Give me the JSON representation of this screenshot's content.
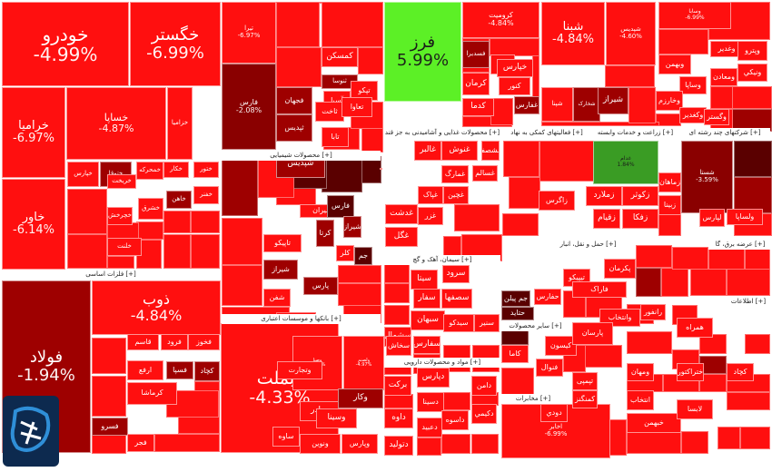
{
  "chart_data": {
    "type": "treemap",
    "title": "",
    "unit": "%",
    "sectors": [
      {
        "name": "فلزات اساسی [+]"
      },
      {
        "name": "بانکها و موسسات اعتباری [+]"
      },
      {
        "name": "محصولات شیمیایی [+]"
      },
      {
        "name": "محصولات غذایی و آشامیدنی به جز قند [+]"
      },
      {
        "name": "فعالیتهای کمکی به نهاد [+]"
      },
      {
        "name": "زراعت و خدمات وابسته [+]"
      },
      {
        "name": "شرکتهای چند رشته ای [+]"
      },
      {
        "name": "سیمان، آهک و گچ [+]"
      },
      {
        "name": "مواد و محصولات دارویی [+]"
      },
      {
        "name": "سایر محصولات [+]"
      },
      {
        "name": "مخابرات [+]"
      },
      {
        "name": "حمل و نقل، انبار [+]"
      },
      {
        "name": "عرضه برق، گا [+]"
      },
      {
        "name": "اطلاعات [+]"
      }
    ],
    "stocks": [
      {
        "name": "خودرو",
        "change": -4.99
      },
      {
        "name": "خگستر",
        "change": -6.99
      },
      {
        "name": "خراميا",
        "change": -6.97
      },
      {
        "name": "خساپا",
        "change": -4.87
      },
      {
        "name": "خاور",
        "change": -6.14
      },
      {
        "name": "فولاد",
        "change": -1.94
      },
      {
        "name": "ذوب",
        "change": -4.84
      },
      {
        "name": "وبملت",
        "change": -4.33
      },
      {
        "name": "فارس",
        "change": -2.08
      },
      {
        "name": "فرز",
        "change": 5.99
      },
      {
        "name": "کروميت",
        "change": -4.84
      },
      {
        "name": "شبنا",
        "change": -4.84
      },
      {
        "name": "شپديس",
        "change": -4.6
      },
      {
        "name": "وسابا",
        "change": -6.99
      },
      {
        "name": "تيرا",
        "change": -6.97
      },
      {
        "name": "غدام",
        "change": 1.84
      },
      {
        "name": "شستا",
        "change": -3.59
      },
      {
        "name": "اخابر",
        "change": -6.99
      },
      {
        "name": "وصنا",
        "change": -4.99
      },
      {
        "name": "ولصنم",
        "change": -4.97
      }
    ],
    "labels": [
      "قاسم",
      "فرود",
      "فخوز",
      "ارفع",
      "کرماشا",
      "فسپا",
      "فسرو",
      "فجر",
      "کچاد",
      "کگل",
      "فسديرا",
      "شپنا",
      "شخارک",
      "شپديس",
      "شپاکسا",
      "شيراز",
      "کرتا",
      "شيران",
      "فارس",
      "تاپيکو",
      "شيراز",
      "شفن",
      "جم",
      "کلر",
      "پارس",
      "شيراز",
      "خپارس",
      "ختوقا",
      "خريخت",
      "خمحرکه",
      "خکار",
      "ختور",
      "خفنر",
      "خزامیا",
      "خچرخش",
      "خاهن",
      "خشرق",
      "خلنت",
      "کمسکن",
      "ثنوسا",
      "تپکو",
      "آسيا",
      "ثاخت",
      "تعاوا",
      "تابا",
      "فجهان",
      "ثپديس",
      "وبصادر",
      "وتجارت",
      "وسینا",
      "وکار",
      "ونوين",
      "ساوه",
      "وپارس",
      "غنوش",
      "غالبر",
      "غمارگ",
      "غگل",
      "غدشت",
      "غزر",
      "غچين",
      "غشصفا",
      "غسالم",
      "غپاک",
      "خپارس",
      "کرمان",
      "کدما",
      "کنور",
      "غفارس",
      "سرود",
      "سیتا",
      "سفار",
      "سصفها",
      "سبهان",
      "سشمال",
      "سیدکو",
      "سفارس",
      "سنیر",
      "سخاش",
      "برکت",
      "دامن",
      "دتولید",
      "داوه",
      "دپارس",
      "دسینا",
      "داسوه",
      "دعبید",
      "دکيمي",
      "جم پيلن",
      "حتايد",
      "حفارس",
      "تيپيکو",
      "کاما",
      "فنوال",
      "کيسون",
      "زملارد",
      "زکوثر",
      "زقيام",
      "زفکا",
      "زاگرس",
      "زماهان",
      "زبينا",
      "وغدير",
      "وپترو",
      "ومعادن",
      "ونيکي",
      "وبهمن",
      "وساپا",
      "وخارزم",
      "وکغدير",
      "رانفور",
      "وانتخاب",
      "ومهان",
      "همراه",
      "انتخاب",
      "ختراکتور",
      "خبهمن",
      "کچاد",
      "تپمپی",
      "کمنگنز",
      "دودي",
      "لابسا",
      "لپارس",
      "ولساپا",
      "وگستر",
      "پارسان",
      "پکرمان",
      "فاراک"
    ]
  }
}
